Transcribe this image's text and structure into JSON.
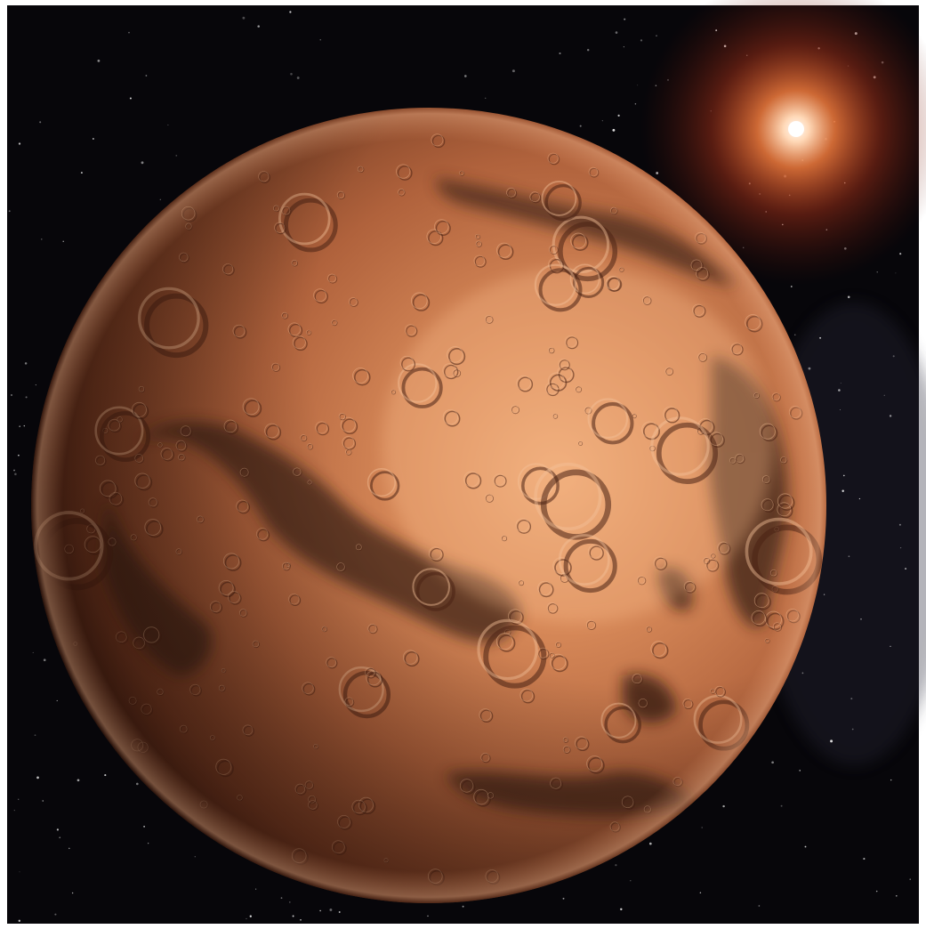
{
  "scene": {
    "subject": "planet-mars",
    "elements": [
      "space-background",
      "starfield",
      "distant-star",
      "planet"
    ],
    "colors": {
      "frame": "#ffffff",
      "space": "#07060a",
      "planet_light": "#e39a6a",
      "planet_mid": "#b8643a",
      "planet_dark": "#3a1a10",
      "maria": "#4a2a1f",
      "star_core": "#fff6ee",
      "star_glow": "#e8511e"
    }
  }
}
